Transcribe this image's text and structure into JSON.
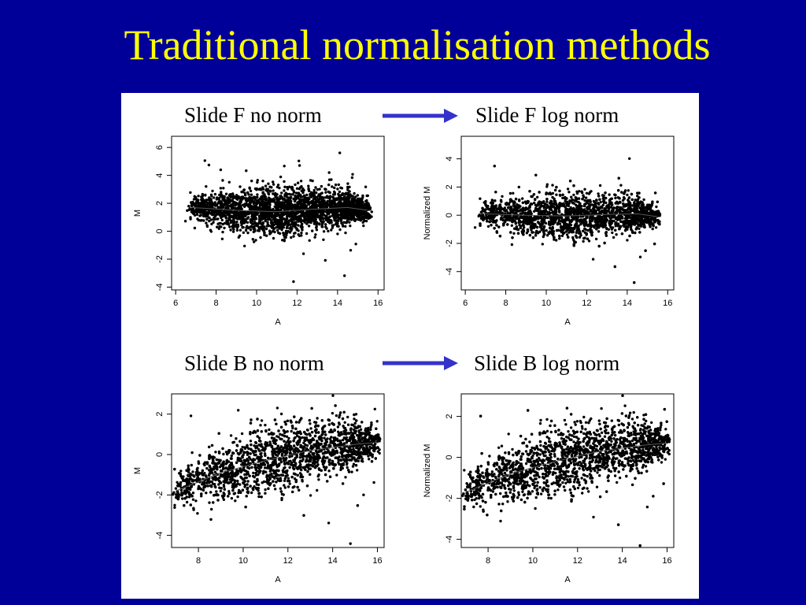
{
  "title": "Traditional normalisation methods",
  "colors": {
    "background": "#000099",
    "title": "#ffff00",
    "arrow": "#3333cc",
    "figure_bg": "#ffffff"
  },
  "labels": {
    "top_left": "Slide F no norm",
    "top_right": "Slide F log norm",
    "bottom_left": "Slide B no norm",
    "bottom_right": "Slide B log norm"
  },
  "chart_data": [
    {
      "type": "scatter",
      "panel": "Slide F no norm",
      "xlabel": "A",
      "ylabel": "M",
      "xlim": [
        5.8,
        16.3
      ],
      "ylim": [
        -4.2,
        6.8
      ],
      "xticks": [
        6,
        8,
        10,
        12,
        14,
        16
      ],
      "yticks": [
        -4,
        -2,
        0,
        2,
        4,
        6
      ],
      "cloud_center": 1.5,
      "trend": [
        [
          6.8,
          1.7
        ],
        [
          9,
          1.5
        ],
        [
          11,
          1.4
        ],
        [
          13,
          1.6
        ],
        [
          14.5,
          1.7
        ],
        [
          15.5,
          1.5
        ]
      ]
    },
    {
      "type": "scatter",
      "panel": "Slide F log norm",
      "xlabel": "A",
      "ylabel": "Normalized M",
      "xlim": [
        5.8,
        16.3
      ],
      "ylim": [
        -5.3,
        5.6
      ],
      "xticks": [
        6,
        8,
        10,
        12,
        14,
        16
      ],
      "yticks": [
        -4,
        -2,
        0,
        2,
        4
      ],
      "cloud_center": 0,
      "trend": [
        [
          6.8,
          0.1
        ],
        [
          9,
          0
        ],
        [
          11,
          -0.05
        ],
        [
          13,
          0.05
        ],
        [
          14.5,
          0.1
        ],
        [
          15.5,
          -0.1
        ]
      ]
    },
    {
      "type": "scatter",
      "panel": "Slide B no norm",
      "xlabel": "A",
      "ylabel": "M",
      "xlim": [
        6.8,
        16.3
      ],
      "ylim": [
        -4.6,
        3.0
      ],
      "xticks": [
        8,
        10,
        12,
        14,
        16
      ],
      "yticks": [
        -4,
        -2,
        0,
        2
      ],
      "cloud_center": 0,
      "trend": [
        [
          7,
          -1.8
        ],
        [
          9,
          -0.9
        ],
        [
          11,
          -0.3
        ],
        [
          13,
          0.2
        ],
        [
          15,
          0.5
        ],
        [
          16,
          0.6
        ]
      ]
    },
    {
      "type": "scatter",
      "panel": "Slide B log norm",
      "xlabel": "A",
      "ylabel": "Normalized M",
      "xlim": [
        6.8,
        16.3
      ],
      "ylim": [
        -4.4,
        3.1
      ],
      "xticks": [
        8,
        10,
        12,
        14,
        16
      ],
      "yticks": [
        -4,
        -2,
        0,
        2
      ],
      "cloud_center": 0,
      "trend": [
        [
          7,
          -1.7
        ],
        [
          9,
          -0.8
        ],
        [
          11,
          -0.2
        ],
        [
          13,
          0.3
        ],
        [
          15,
          0.6
        ],
        [
          16,
          0.7
        ]
      ]
    }
  ]
}
